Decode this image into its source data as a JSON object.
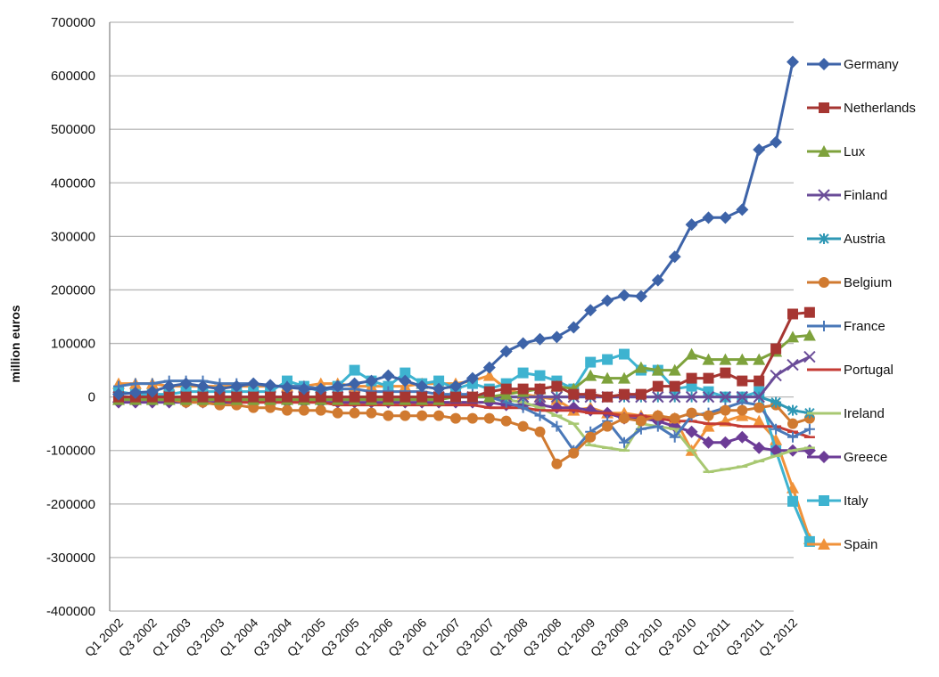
{
  "chart_data": {
    "type": "line",
    "title": "",
    "xlabel": "",
    "ylabel": "million euros",
    "ylim": [
      -400000,
      700000
    ],
    "yticks": [
      -400000,
      -300000,
      -200000,
      -100000,
      0,
      100000,
      200000,
      300000,
      400000,
      500000,
      600000,
      700000
    ],
    "ytick_labels": [
      "-400000",
      "-300000",
      "-200000",
      "-100000",
      "0",
      "100000",
      "200000",
      "300000",
      "400000",
      "500000",
      "600000",
      "700000"
    ],
    "categories": [
      "Q1 2002",
      "Q2 2002",
      "Q3 2002",
      "Q4 2002",
      "Q1 2003",
      "Q2 2003",
      "Q3 2003",
      "Q4 2003",
      "Q1 2004",
      "Q2 2004",
      "Q3 2004",
      "Q4 2004",
      "Q1 2005",
      "Q2 2005",
      "Q3 2005",
      "Q4 2005",
      "Q1 2006",
      "Q2 2006",
      "Q3 2006",
      "Q4 2006",
      "Q1 2007",
      "Q2 2007",
      "Q3 2007",
      "Q4 2007",
      "Q1 2008",
      "Q2 2008",
      "Q3 2008",
      "Q4 2008",
      "Q1 2009",
      "Q2 2009",
      "Q3 2009",
      "Q4 2009",
      "Q1 2010",
      "Q2 2010",
      "Q3 2010",
      "Q4 2010",
      "Q1 2011",
      "Q2 2011",
      "Q3 2011",
      "Q4 2011",
      "Q1 2012",
      "Q2 2012"
    ],
    "xtick_labels": [
      "Q1 2002",
      "Q3 2002",
      "Q1 2003",
      "Q3 2003",
      "Q1 2004",
      "Q3 2004",
      "Q1 2005",
      "Q3 2005",
      "Q1 2006",
      "Q3 2006",
      "Q1 2007",
      "Q3 2007",
      "Q1 2008",
      "Q3 2008",
      "Q1 2009",
      "Q3 2009",
      "Q1 2010",
      "Q3 2010",
      "Q1 2011",
      "Q3 2011",
      "Q1 2012"
    ],
    "grid": true,
    "legend_position": "right",
    "series": [
      {
        "name": "Germany",
        "color": "#3d63a8",
        "marker": "diamond",
        "values": [
          5000,
          8000,
          10000,
          20000,
          25000,
          20000,
          15000,
          20000,
          25000,
          22000,
          18000,
          15000,
          15000,
          20000,
          25000,
          30000,
          40000,
          30000,
          20000,
          15000,
          20000,
          35000,
          55000,
          85000,
          100000,
          108000,
          112000,
          130000,
          162000,
          180000,
          190000,
          188000,
          218000,
          262000,
          322000,
          335000,
          335000,
          350000,
          462000,
          476000,
          626000,
          null
        ]
      },
      {
        "name": "Netherlands",
        "color": "#a63632",
        "marker": "square",
        "values": [
          0,
          0,
          0,
          0,
          0,
          0,
          0,
          0,
          0,
          0,
          0,
          0,
          0,
          0,
          0,
          0,
          0,
          0,
          0,
          0,
          0,
          0,
          10000,
          15000,
          15000,
          15000,
          20000,
          5000,
          5000,
          0,
          5000,
          5000,
          20000,
          20000,
          35000,
          35000,
          45000,
          30000,
          30000,
          90000,
          155000,
          158000
        ]
      },
      {
        "name": "Lux",
        "color": "#7ea23c",
        "marker": "triangle",
        "values": [
          -5000,
          -5000,
          -5000,
          -5000,
          -5000,
          -5000,
          -5000,
          -5000,
          -5000,
          -5000,
          -5000,
          -5000,
          -5000,
          -5000,
          -5000,
          -5000,
          -5000,
          -5000,
          -5000,
          -5000,
          0,
          0,
          0,
          5000,
          10000,
          15000,
          20000,
          15000,
          40000,
          35000,
          35000,
          55000,
          50000,
          50000,
          80000,
          70000,
          70000,
          70000,
          70000,
          85000,
          112000,
          115000
        ]
      },
      {
        "name": "Finland",
        "color": "#6a4c98",
        "marker": "x",
        "values": [
          0,
          0,
          0,
          0,
          0,
          0,
          0,
          0,
          0,
          0,
          0,
          0,
          0,
          0,
          0,
          0,
          0,
          0,
          0,
          0,
          0,
          0,
          0,
          0,
          0,
          0,
          0,
          0,
          0,
          0,
          0,
          0,
          0,
          0,
          0,
          0,
          0,
          0,
          0,
          40000,
          60000,
          75000
        ]
      },
      {
        "name": "Austria",
        "color": "#2f98b5",
        "marker": "star",
        "values": [
          0,
          0,
          0,
          0,
          0,
          0,
          0,
          0,
          0,
          0,
          0,
          0,
          0,
          0,
          0,
          0,
          0,
          0,
          0,
          0,
          0,
          0,
          0,
          0,
          0,
          0,
          0,
          0,
          0,
          0,
          0,
          0,
          0,
          0,
          0,
          0,
          0,
          0,
          0,
          -10000,
          -25000,
          -30000
        ]
      },
      {
        "name": "Belgium",
        "color": "#d07a30",
        "marker": "circle",
        "values": [
          0,
          -5000,
          -5000,
          -5000,
          -10000,
          -10000,
          -15000,
          -15000,
          -20000,
          -20000,
          -25000,
          -25000,
          -25000,
          -30000,
          -30000,
          -30000,
          -35000,
          -35000,
          -35000,
          -35000,
          -40000,
          -40000,
          -40000,
          -45000,
          -55000,
          -65000,
          -125000,
          -105000,
          -75000,
          -55000,
          -40000,
          -45000,
          -35000,
          -40000,
          -30000,
          -35000,
          -25000,
          -25000,
          -20000,
          -15000,
          -50000,
          -40000
        ]
      },
      {
        "name": "France",
        "color": "#4a78b8",
        "marker": "plus",
        "values": [
          20000,
          25000,
          25000,
          30000,
          30000,
          30000,
          25000,
          25000,
          25000,
          20000,
          20000,
          20000,
          15000,
          15000,
          15000,
          10000,
          10000,
          10000,
          10000,
          5000,
          5000,
          5000,
          0,
          -10000,
          -20000,
          -35000,
          -55000,
          -100000,
          -65000,
          -45000,
          -85000,
          -60000,
          -55000,
          -75000,
          -35000,
          -30000,
          -20000,
          -10000,
          -15000,
          -60000,
          -75000,
          -60000
        ]
      },
      {
        "name": "Portugal",
        "color": "#c43b34",
        "marker": "dash",
        "values": [
          -5000,
          -5000,
          -5000,
          -5000,
          -5000,
          -5000,
          -5000,
          -10000,
          -10000,
          -10000,
          -10000,
          -10000,
          -10000,
          -15000,
          -15000,
          -15000,
          -15000,
          -15000,
          -15000,
          -15000,
          -15000,
          -15000,
          -20000,
          -20000,
          -20000,
          -25000,
          -25000,
          -25000,
          -30000,
          -30000,
          -35000,
          -35000,
          -40000,
          -45000,
          -45000,
          -50000,
          -50000,
          -55000,
          -55000,
          -55000,
          -65000,
          -75000
        ]
      },
      {
        "name": "Ireland",
        "color": "#a8c872",
        "marker": "dash",
        "values": [
          0,
          0,
          0,
          0,
          0,
          0,
          0,
          0,
          0,
          0,
          0,
          0,
          0,
          0,
          0,
          0,
          0,
          0,
          0,
          0,
          0,
          0,
          0,
          -5000,
          -10000,
          -20000,
          -35000,
          -50000,
          -90000,
          -95000,
          -100000,
          -50000,
          -55000,
          -60000,
          -100000,
          -140000,
          -135000,
          -130000,
          -120000,
          -110000,
          -100000,
          -95000
        ]
      },
      {
        "name": "Greece",
        "color": "#6c3c96",
        "marker": "diamond",
        "values": [
          -10000,
          -10000,
          -10000,
          -10000,
          -10000,
          -10000,
          -10000,
          -10000,
          -10000,
          -10000,
          -10000,
          -10000,
          -10000,
          -10000,
          -10000,
          -10000,
          -10000,
          -10000,
          -10000,
          -10000,
          -10000,
          -10000,
          -10000,
          -15000,
          -15000,
          -15000,
          -20000,
          -20000,
          -25000,
          -30000,
          -40000,
          -40000,
          -45000,
          -55000,
          -65000,
          -85000,
          -85000,
          -75000,
          -95000,
          -100000,
          -100000,
          -100000
        ]
      },
      {
        "name": "Italy",
        "color": "#3eb3d0",
        "marker": "square",
        "values": [
          10000,
          5000,
          5000,
          5000,
          10000,
          10000,
          10000,
          10000,
          10000,
          10000,
          30000,
          20000,
          10000,
          20000,
          50000,
          30000,
          20000,
          45000,
          25000,
          30000,
          15000,
          25000,
          15000,
          25000,
          45000,
          40000,
          30000,
          15000,
          65000,
          70000,
          80000,
          50000,
          50000,
          15000,
          20000,
          10000,
          0,
          0,
          10000,
          -100000,
          -195000,
          -270000
        ]
      },
      {
        "name": "Spain",
        "color": "#f0923a",
        "marker": "triangle",
        "values": [
          25000,
          25000,
          25000,
          20000,
          20000,
          20000,
          20000,
          20000,
          20000,
          20000,
          20000,
          20000,
          25000,
          25000,
          20000,
          20000,
          20000,
          20000,
          25000,
          25000,
          25000,
          30000,
          40000,
          15000,
          5000,
          0,
          -5000,
          -25000,
          -20000,
          -30000,
          -30000,
          -35000,
          -35000,
          -40000,
          -100000,
          -55000,
          -45000,
          -35000,
          -45000,
          -80000,
          -170000,
          -265000
        ]
      }
    ]
  }
}
